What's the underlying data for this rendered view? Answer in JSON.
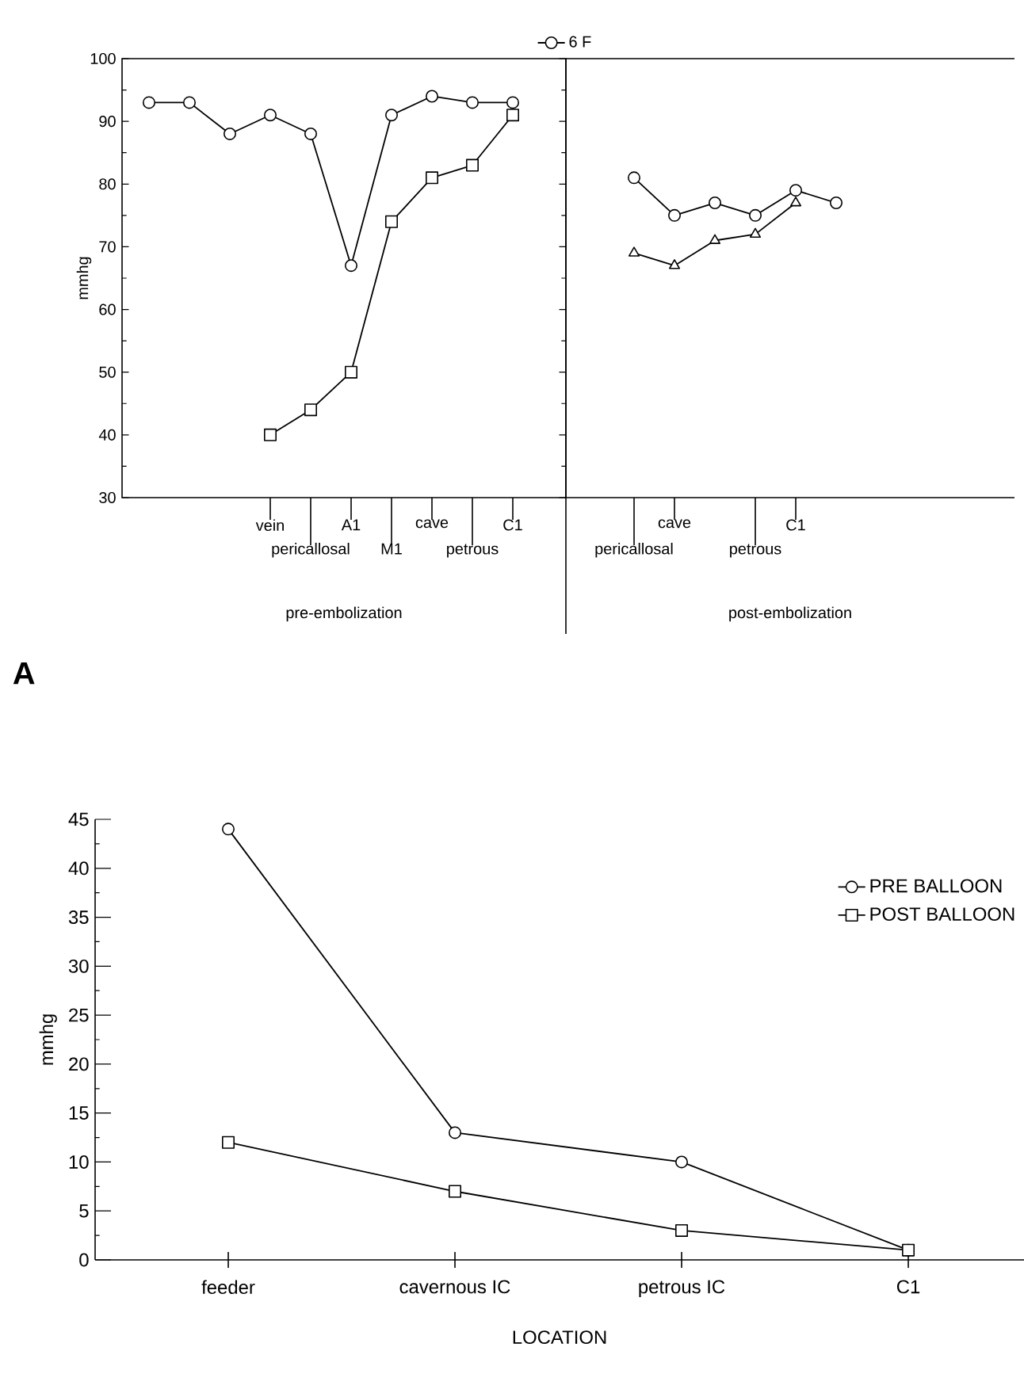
{
  "chart_data": [
    {
      "type": "line",
      "xlabel": "pre-embolization",
      "ylabel": "mmhg",
      "annotations": [
        "A"
      ],
      "categories": [
        null,
        null,
        null,
        "vein",
        "pericallosal",
        "A1",
        "M1",
        "cave",
        "petrous",
        "C1"
      ],
      "series": [
        {
          "color": "#000000",
          "marker": "square",
          "values": [
            null,
            null,
            null,
            40,
            44,
            50,
            74,
            81,
            83,
            91
          ]
        },
        {
          "name": "6 F",
          "color": "#000000",
          "marker": "circle",
          "values": [
            93,
            93,
            88,
            91,
            88,
            67,
            91,
            94,
            93,
            93
          ]
        }
      ],
      "ylim": [
        30,
        100
      ],
      "yticks": [
        30,
        40,
        50,
        60,
        70,
        80,
        90,
        100
      ],
      "legend": "top"
    },
    {
      "type": "line",
      "xlabel": "post-embolization",
      "categories": [
        "pericallosal",
        "cave",
        null,
        "petrous",
        "C1",
        null
      ],
      "series": [
        {
          "color": "#000000",
          "marker": "circle",
          "values": [
            81,
            75,
            77,
            75,
            79,
            77
          ]
        },
        {
          "color": "#000000",
          "marker": "triangle",
          "values": [
            69,
            67,
            71,
            72,
            77,
            null
          ]
        }
      ],
      "ylim": [
        30,
        100
      ],
      "tick_labels": "x"
    },
    {
      "type": "line",
      "xlabel": "LOCATION",
      "ylabel": "mmhg",
      "categories": [
        "feeder",
        "cavernous IC",
        "petrous IC",
        "C1"
      ],
      "series": [
        {
          "name": "PRE BALLOON",
          "color": "#000000",
          "marker": "circle",
          "values": [
            44,
            13,
            10,
            1
          ]
        },
        {
          "name": "POST BALLOON",
          "color": "#000000",
          "marker": "square",
          "values": [
            12,
            7,
            3,
            1
          ]
        }
      ],
      "ylim": [
        0,
        45
      ],
      "yticks": [
        0,
        5,
        10,
        15,
        20,
        25,
        30,
        35,
        40,
        45
      ],
      "legend": "top right"
    }
  ]
}
